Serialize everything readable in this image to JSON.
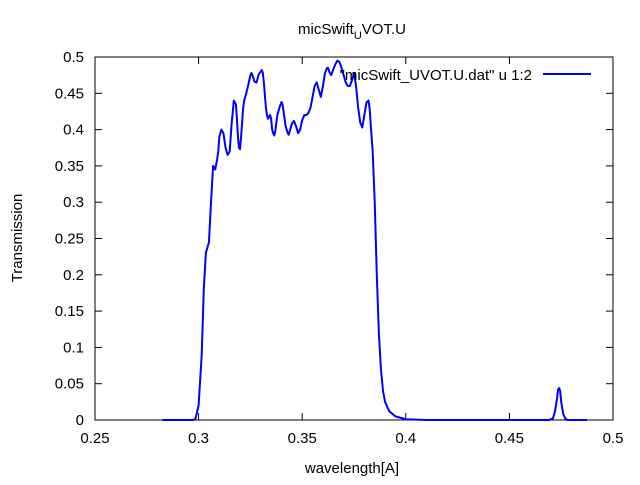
{
  "chart_data": {
    "type": "line",
    "title": {
      "main": "micSwift",
      "subscript": "U",
      "rest": "VOT.U"
    },
    "xlabel": "wavelength[A]",
    "ylabel": "Transmission",
    "xlim": [
      0.25,
      0.5
    ],
    "ylim": [
      0,
      0.5
    ],
    "x_ticks": [
      0.25,
      0.3,
      0.35,
      0.4,
      0.45,
      0.5
    ],
    "y_ticks": [
      0,
      0.05,
      0.1,
      0.15,
      0.2,
      0.25,
      0.3,
      0.35,
      0.4,
      0.45,
      0.5
    ],
    "x_tick_labels": [
      "0.25",
      "0.3",
      "0.35",
      "0.4",
      "0.45",
      "0.5"
    ],
    "y_tick_labels": [
      "0",
      "0.05",
      "0.1",
      "0.15",
      "0.2",
      "0.25",
      "0.3",
      "0.35",
      "0.4",
      "0.45",
      "0.5"
    ],
    "grid": false,
    "legend_position": "top-right",
    "series": [
      {
        "name": "\"micSwift_UVOT.U.dat\" u 1:2",
        "color": "#0000ff",
        "x": [
          0.2825,
          0.2975,
          0.2985,
          0.3,
          0.3015,
          0.3025,
          0.3035,
          0.305,
          0.306,
          0.307,
          0.308,
          0.309,
          0.3095,
          0.31,
          0.311,
          0.312,
          0.3125,
          0.313,
          0.314,
          0.315,
          0.3155,
          0.316,
          0.317,
          0.318,
          0.3185,
          0.319,
          0.3195,
          0.32,
          0.3205,
          0.321,
          0.3215,
          0.322,
          0.3225,
          0.323,
          0.324,
          0.325,
          0.3255,
          0.326,
          0.327,
          0.328,
          0.329,
          0.33,
          0.3305,
          0.331,
          0.3315,
          0.332,
          0.3325,
          0.333,
          0.3335,
          0.334,
          0.3345,
          0.335,
          0.3355,
          0.336,
          0.3365,
          0.337,
          0.338,
          0.339,
          0.34,
          0.3405,
          0.341,
          0.342,
          0.343,
          0.3435,
          0.344,
          0.345,
          0.346,
          0.347,
          0.348,
          0.349,
          0.35,
          0.351,
          0.352,
          0.353,
          0.354,
          0.355,
          0.356,
          0.357,
          0.358,
          0.359,
          0.36,
          0.361,
          0.362,
          0.3625,
          0.363,
          0.364,
          0.365,
          0.366,
          0.367,
          0.368,
          0.369,
          0.37,
          0.371,
          0.372,
          0.373,
          0.374,
          0.375,
          0.376,
          0.377,
          0.378,
          0.379,
          0.38,
          0.381,
          0.382,
          0.3825,
          0.383,
          0.384,
          0.385,
          0.386,
          0.387,
          0.388,
          0.389,
          0.39,
          0.392,
          0.395,
          0.4,
          0.41,
          0.42,
          0.43,
          0.44,
          0.45,
          0.46,
          0.465,
          0.469,
          0.471,
          0.472,
          0.473,
          0.4735,
          0.474,
          0.4745,
          0.475,
          0.476,
          0.477,
          0.478,
          0.48,
          0.485,
          0.4875
        ],
        "y": [
          0,
          0,
          0.002,
          0.02,
          0.09,
          0.18,
          0.23,
          0.245,
          0.3,
          0.35,
          0.345,
          0.36,
          0.37,
          0.39,
          0.4,
          0.395,
          0.385,
          0.375,
          0.365,
          0.37,
          0.39,
          0.41,
          0.44,
          0.435,
          0.415,
          0.39,
          0.375,
          0.373,
          0.39,
          0.41,
          0.43,
          0.44,
          0.445,
          0.45,
          0.462,
          0.475,
          0.478,
          0.475,
          0.466,
          0.465,
          0.476,
          0.48,
          0.482,
          0.478,
          0.465,
          0.447,
          0.43,
          0.42,
          0.415,
          0.418,
          0.42,
          0.415,
          0.4,
          0.395,
          0.392,
          0.398,
          0.42,
          0.43,
          0.438,
          0.435,
          0.425,
          0.405,
          0.395,
          0.393,
          0.398,
          0.408,
          0.412,
          0.405,
          0.395,
          0.4,
          0.413,
          0.42,
          0.42,
          0.423,
          0.43,
          0.445,
          0.46,
          0.465,
          0.455,
          0.445,
          0.46,
          0.478,
          0.485,
          0.485,
          0.48,
          0.475,
          0.483,
          0.49,
          0.495,
          0.493,
          0.485,
          0.475,
          0.465,
          0.46,
          0.46,
          0.468,
          0.478,
          0.46,
          0.43,
          0.41,
          0.403,
          0.42,
          0.437,
          0.44,
          0.43,
          0.41,
          0.37,
          0.3,
          0.2,
          0.12,
          0.07,
          0.04,
          0.025,
          0.012,
          0.005,
          0.001,
          0,
          0,
          0,
          0,
          0,
          0,
          0,
          0,
          0.002,
          0.012,
          0.03,
          0.042,
          0.044,
          0.04,
          0.025,
          0.008,
          0.002,
          0,
          0,
          0,
          0
        ]
      }
    ]
  }
}
